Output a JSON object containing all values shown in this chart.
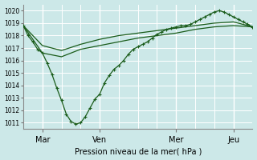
{
  "xlabel": "Pression niveau de la mer( hPa )",
  "bg_color": "#cce8e8",
  "line_color": "#1a5c1a",
  "grid_color": "#ffffff",
  "ylim": [
    1010.5,
    1020.5
  ],
  "yticks": [
    1011,
    1012,
    1013,
    1014,
    1015,
    1016,
    1017,
    1018,
    1019,
    1020
  ],
  "xlim": [
    0,
    288
  ],
  "xtick_positions": [
    24,
    96,
    192,
    264
  ],
  "day_labels": [
    "Mar",
    "Ven",
    "Mer",
    "Jeu"
  ],
  "vert_lines": [
    24,
    96,
    192,
    264
  ],
  "horiz_grid_x": [
    0,
    24,
    48,
    72,
    96,
    120,
    144,
    168,
    192,
    216,
    240,
    264,
    288
  ],
  "series1_x": [
    0,
    6,
    12,
    18,
    24,
    30,
    36,
    42,
    48,
    54,
    60,
    66,
    72,
    78,
    84,
    90,
    96,
    102,
    108,
    114,
    120,
    126,
    132,
    138,
    144,
    150,
    156,
    162,
    168,
    174,
    180,
    186,
    192,
    198,
    204,
    210,
    216,
    222,
    228,
    234,
    240,
    246,
    252,
    258,
    264,
    270,
    276,
    282,
    288
  ],
  "series1_y": [
    1018.8,
    1018.0,
    1017.5,
    1016.9,
    1016.6,
    1015.8,
    1014.9,
    1013.8,
    1012.8,
    1011.7,
    1011.1,
    1010.9,
    1011.0,
    1011.5,
    1012.2,
    1012.9,
    1013.3,
    1014.2,
    1014.8,
    1015.3,
    1015.6,
    1016.0,
    1016.5,
    1016.9,
    1017.1,
    1017.3,
    1017.5,
    1017.8,
    1018.1,
    1018.3,
    1018.5,
    1018.6,
    1018.7,
    1018.8,
    1018.8,
    1018.9,
    1019.1,
    1019.3,
    1019.5,
    1019.7,
    1019.9,
    1020.0,
    1019.9,
    1019.7,
    1019.5,
    1019.3,
    1019.1,
    1018.9,
    1018.7
  ],
  "series2_x": [
    0,
    24,
    48,
    72,
    96,
    120,
    144,
    168,
    192,
    216,
    240,
    264,
    288
  ],
  "series2_y": [
    1018.8,
    1016.6,
    1016.3,
    1016.9,
    1017.2,
    1017.5,
    1017.8,
    1018.0,
    1018.2,
    1018.5,
    1018.7,
    1018.8,
    1018.7
  ],
  "series3_x": [
    0,
    24,
    48,
    72,
    96,
    120,
    144,
    168,
    192,
    216,
    240,
    264,
    288
  ],
  "series3_y": [
    1018.8,
    1017.2,
    1016.8,
    1017.3,
    1017.7,
    1018.0,
    1018.2,
    1018.4,
    1018.6,
    1018.8,
    1019.0,
    1019.1,
    1018.7
  ]
}
